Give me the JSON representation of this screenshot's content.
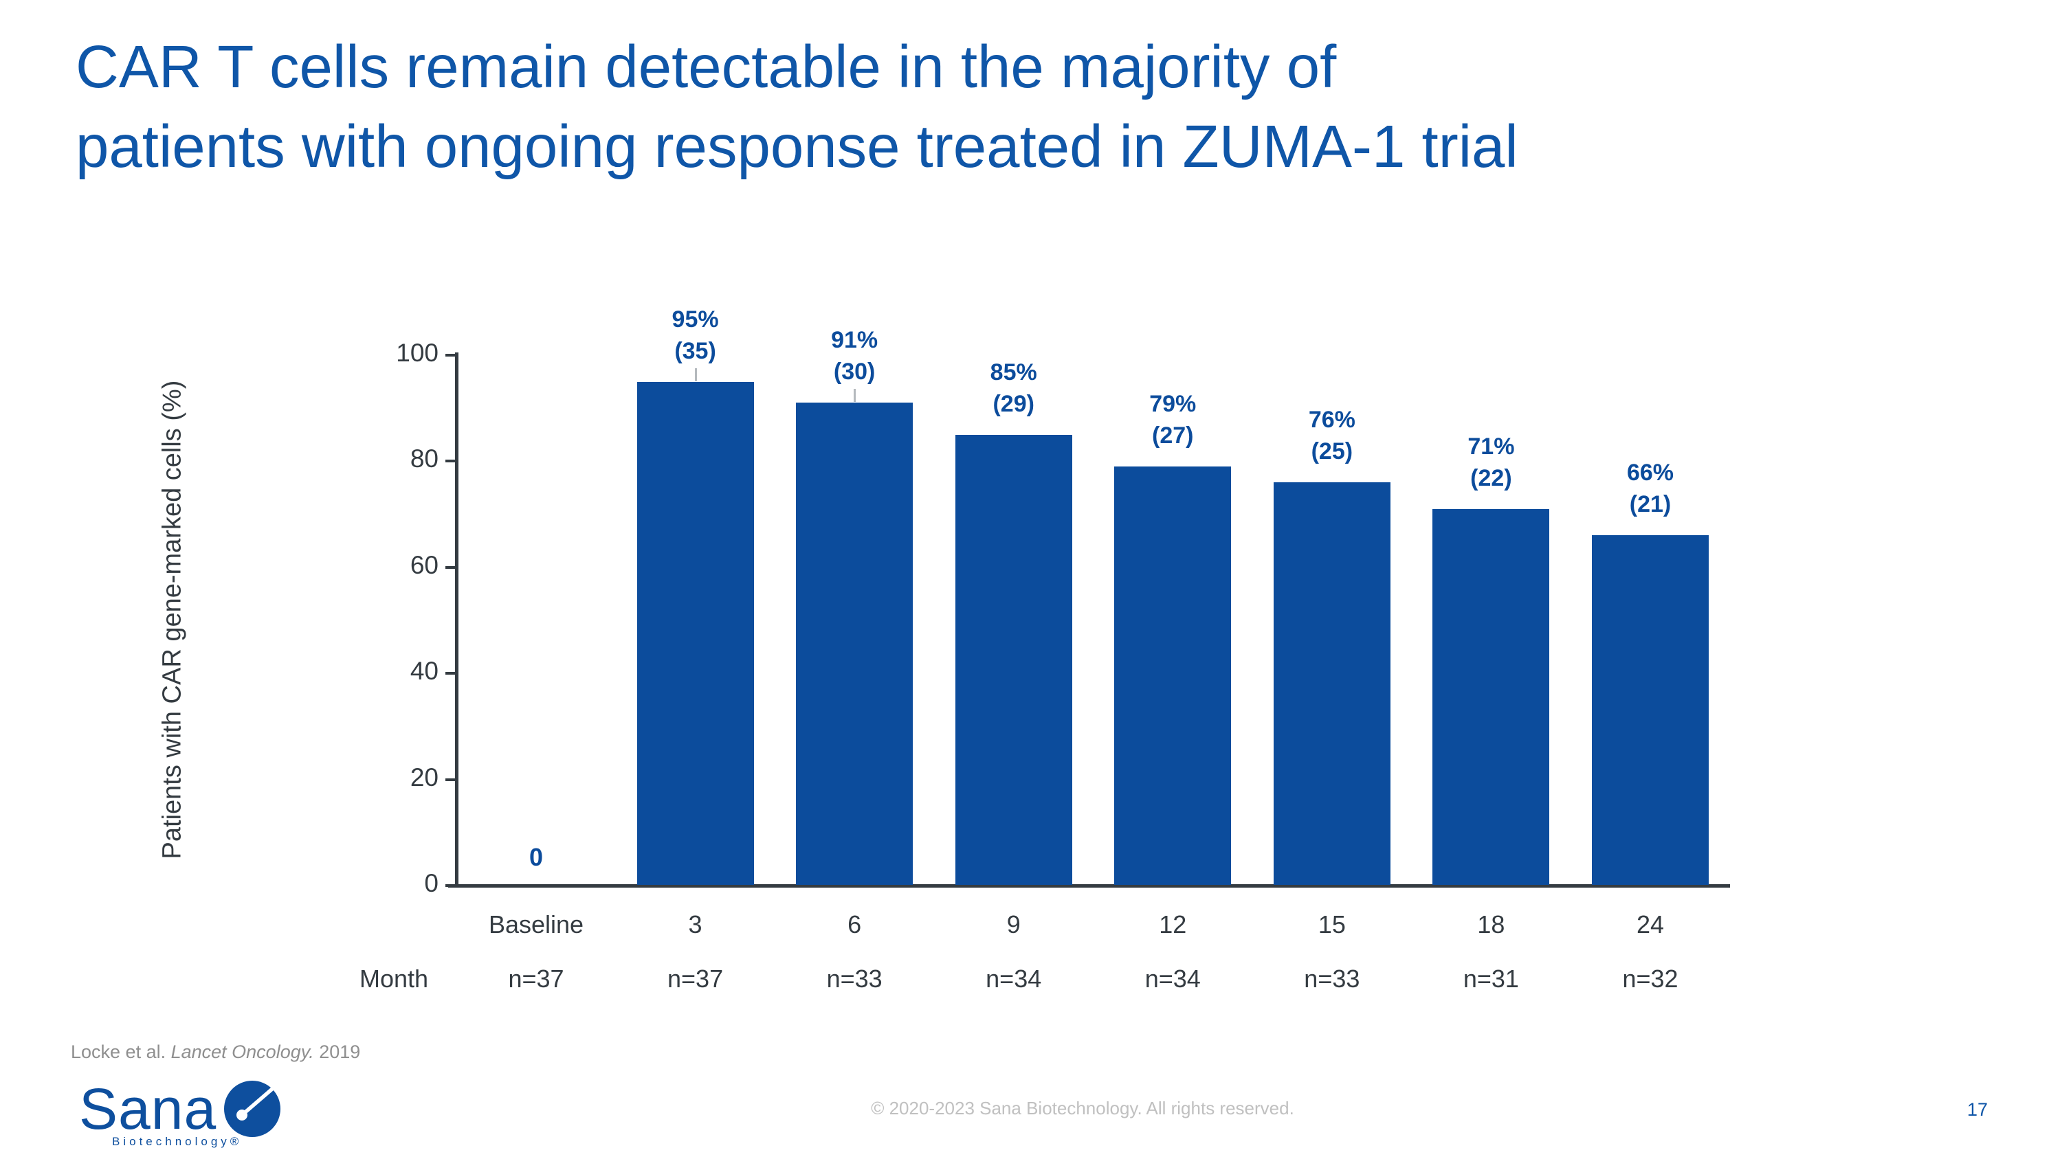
{
  "slide": {
    "title": "CAR T cells remain detectable in the majority of\npatients with ongoing response treated in ZUMA-1 trial",
    "footnote": {
      "pre": "Locke et al. ",
      "italic": "Lancet Oncology.",
      "post": " 2019"
    },
    "copyright": "© 2020-2023 Sana Biotechnology. All rights reserved.",
    "page_number": "17",
    "logo": {
      "wordmark": "Sana",
      "subtext": "Biotechnology®"
    }
  },
  "colors": {
    "title_blue": "#0F56A8",
    "bar_blue": "#0C4C9C",
    "label_blue": "#0C4C9C",
    "brand_blue": "#0E4F9E",
    "axis_dark": "#343B41"
  },
  "chart_data": {
    "type": "bar",
    "title": "",
    "xlabel": "",
    "ylabel": "Patients with CAR gene-marked cells (%)",
    "row_label": "Month",
    "categories": [
      "Baseline",
      "3",
      "6",
      "9",
      "12",
      "15",
      "18",
      "24"
    ],
    "values": [
      0,
      95,
      91,
      85,
      79,
      76,
      71,
      66
    ],
    "counts": [
      null,
      35,
      30,
      29,
      27,
      25,
      22,
      21
    ],
    "value_label_format": "{value}%\n({count})",
    "zero_label": "0",
    "n_labels": [
      "n=37",
      "n=37",
      "n=33",
      "n=34",
      "n=34",
      "n=33",
      "n=31",
      "n=32"
    ],
    "y_ticks": [
      0,
      20,
      40,
      60,
      80,
      100
    ],
    "ylim": [
      0,
      100
    ],
    "grid": false,
    "legend_position": "none",
    "leader_lines": [
      false,
      true,
      true,
      false,
      false,
      false,
      false,
      false
    ]
  }
}
